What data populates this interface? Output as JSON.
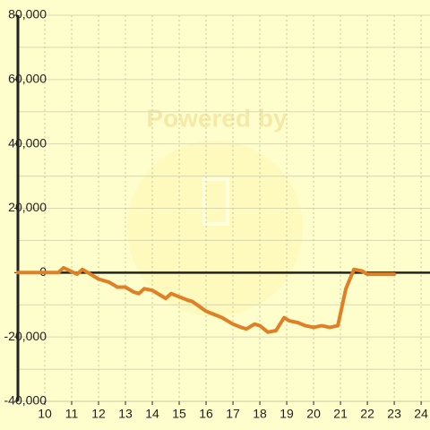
{
  "chart_data": {
    "type": "line",
    "watermark": "Powered by",
    "x": [
      9,
      10.5,
      10.7,
      11.2,
      11.4,
      11.6,
      12.0,
      12.4,
      12.7,
      13.0,
      13.3,
      13.5,
      13.7,
      14.0,
      14.3,
      14.5,
      14.7,
      15.0,
      15.3,
      15.5,
      16.0,
      16.3,
      16.6,
      17.0,
      17.3,
      17.5,
      17.8,
      18.0,
      18.3,
      18.6,
      18.9,
      19.1,
      19.4,
      19.7,
      20.0,
      20.3,
      20.6,
      20.9,
      21.2,
      21.5,
      21.8,
      22.0,
      22.3,
      23.0
    ],
    "values": [
      0,
      0,
      1500,
      -500,
      1000,
      0,
      -2000,
      -3000,
      -4500,
      -4500,
      -6000,
      -6500,
      -5000,
      -5500,
      -7000,
      -8000,
      -6500,
      -7500,
      -8500,
      -9000,
      -12000,
      -13000,
      -14000,
      -16000,
      -17000,
      -17500,
      -16000,
      -16500,
      -18500,
      -18000,
      -14000,
      -15000,
      -15500,
      -16500,
      -17000,
      -16500,
      -17000,
      -16500,
      -5000,
      1000,
      500,
      -500,
      -500,
      -500
    ],
    "color": "#e07f26",
    "xlim": [
      9,
      24.33
    ],
    "ylim": [
      -40000,
      80000
    ],
    "xticks": [
      10,
      11,
      12,
      13,
      14,
      15,
      16,
      17,
      18,
      19,
      20,
      21,
      22,
      23,
      24
    ],
    "yticks": [
      {
        "value": 80000,
        "label": "80,000"
      },
      {
        "value": 60000,
        "label": "60,000"
      },
      {
        "value": 40000,
        "label": "40,000"
      },
      {
        "value": 20000,
        "label": "20,000"
      },
      0,
      {
        "value": -20000,
        "label": "-20,000"
      },
      {
        "value": -40000,
        "label": "-40,000"
      }
    ],
    "minor_yticks": [
      70000,
      50000,
      30000,
      10000,
      -10000,
      -30000
    ],
    "grid": true
  }
}
